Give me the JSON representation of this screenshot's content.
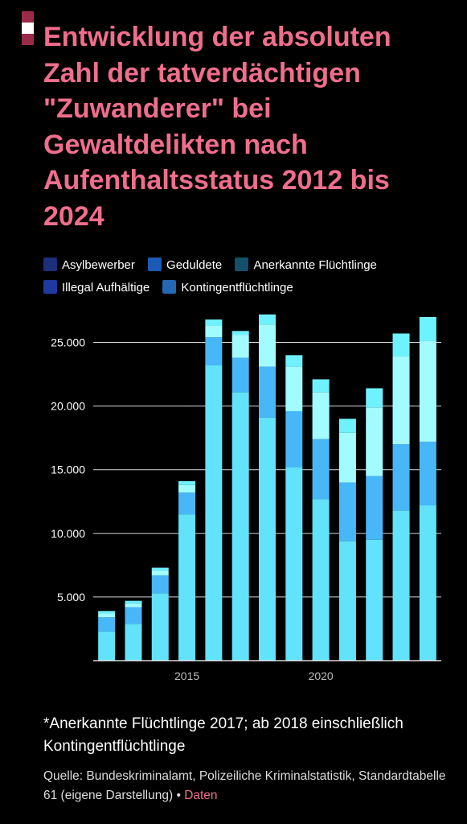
{
  "header": {
    "title": "Entwicklung der absoluten Zahl der tatverdächtigen \"Zuwanderer\" bei Gewaltdelikten nach Aufenthaltsstatus 2012 bis 2024"
  },
  "colors": {
    "background": "#000000",
    "title": "#f06e8c",
    "flag_red": "#9b2a48",
    "flag_white": "#ffffff"
  },
  "legend": [
    {
      "label": "Asylbewerber",
      "color": "#1b2f7a"
    },
    {
      "label": "Geduldete",
      "color": "#1a5bb5"
    },
    {
      "label": "Anerkannte Flüchtlinge",
      "color": "#15506a"
    },
    {
      "label": "Illegal Aufhältige",
      "color": "#1e3aa0"
    },
    {
      "label": "Kontingentflüchtlinge",
      "color": "#2368b0"
    }
  ],
  "chart_data": {
    "type": "bar",
    "stacked": true,
    "x": [
      2012,
      2013,
      2014,
      2015,
      2016,
      2017,
      2018,
      2019,
      2020,
      2021,
      2022,
      2023,
      2024
    ],
    "x_ticks": [
      2015,
      2020
    ],
    "ylim": [
      0,
      27500
    ],
    "y_ticks": [
      5000,
      10000,
      15000,
      20000,
      25000
    ],
    "y_tick_labels": [
      "5.000",
      "10.000",
      "15.000",
      "20.000",
      "25.000"
    ],
    "grid": true,
    "series": [
      {
        "name": "Asylbewerber",
        "color": "#62e2fb",
        "values": [
          2300,
          2900,
          5300,
          11500,
          23200,
          21100,
          19100,
          15200,
          12700,
          9400,
          9500,
          11800,
          12200
        ]
      },
      {
        "name": "Geduldete",
        "color": "#47b7f8",
        "values": [
          1100,
          1300,
          1400,
          1700,
          2200,
          2700,
          4000,
          4400,
          4700,
          4600,
          5000,
          5200,
          5000
        ]
      },
      {
        "name": "Anerkannte Flüchtlinge",
        "color": "#a2fcff",
        "values": [
          300,
          300,
          400,
          600,
          900,
          1800,
          3300,
          3500,
          3700,
          3900,
          5400,
          6900,
          7900
        ]
      },
      {
        "name": "Illegal Aufhältige",
        "color": "#6ff2ff",
        "values": [
          200,
          200,
          200,
          300,
          500,
          300,
          800,
          900,
          1000,
          1100,
          1500,
          1800,
          1900
        ]
      },
      {
        "name": "Kontingentflüchtlinge",
        "color": "#6ff2ff",
        "values": [
          0,
          0,
          0,
          0,
          0,
          0,
          0,
          0,
          0,
          0,
          0,
          0,
          0
        ]
      }
    ]
  },
  "footer": {
    "note": "*Anerkannte Flüchtlinge 2017; ab 2018 einschließlich Kontingentflüchtlinge",
    "source": "Quelle: Bundeskriminalamt, Polizeiliche Kriminalstatistik, Standardtabelle 61 (eigene Darstellung)",
    "separator": "•",
    "link": "Daten"
  }
}
